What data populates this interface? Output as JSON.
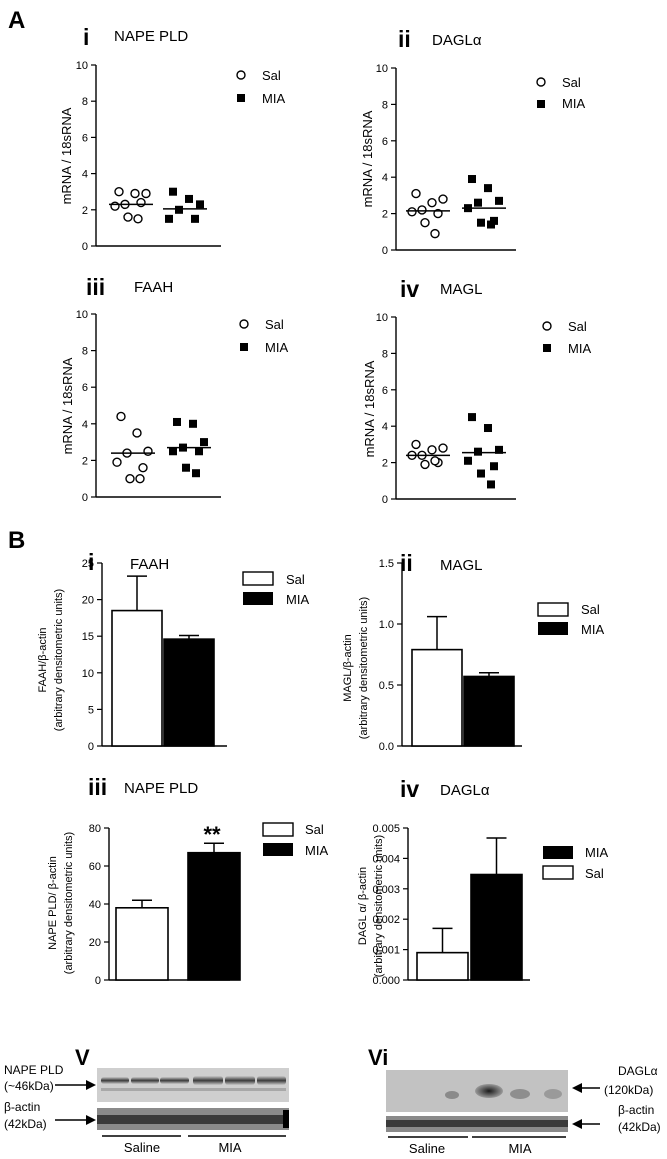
{
  "panels": {
    "A": "A",
    "B": "B"
  },
  "charts": [
    {
      "roman": "i",
      "title": "NAPE PLD",
      "ylabel": "mRNA / 18sRNA",
      "ticks": [
        "0",
        "2",
        "4",
        "6",
        "8",
        "10"
      ],
      "legend": [
        "Sal",
        "MIA"
      ]
    },
    {
      "roman": "ii",
      "title": "DAGLα",
      "ylabel": "mRNA  / 18sRNA",
      "ticks": [
        "0",
        "2",
        "4",
        "6",
        "8",
        "10"
      ],
      "legend": [
        "Sal",
        "MIA"
      ]
    },
    {
      "roman": "iii",
      "title": "FAAH",
      "ylabel": "mRNA / 18sRNA",
      "ticks": [
        "0",
        "2",
        "4",
        "6",
        "8",
        "10"
      ],
      "legend": [
        "Sal",
        "MIA"
      ]
    },
    {
      "roman": "iv",
      "title": "MAGL",
      "ylabel": "mRNA  / 18sRNA",
      "ticks": [
        "0",
        "2",
        "4",
        "6",
        "8",
        "10"
      ],
      "legend": [
        "Sal",
        "MIA"
      ]
    },
    {
      "roman": "i",
      "title": "FAAH",
      "ylabel1": "FAAH/β-actin",
      "ylabel2": "(arbitrary densitometric units)",
      "ticks": [
        "0",
        "5",
        "10",
        "15",
        "20",
        "25"
      ],
      "legend": [
        "Sal",
        "MIA"
      ]
    },
    {
      "roman": "ii",
      "title": "MAGL",
      "ylabel1": "MAGL/β-actin",
      "ylabel2": "(arbitrary densitometric units)",
      "ticks": [
        "0.0",
        "0.5",
        "1.0",
        "1.5"
      ],
      "legend": [
        "Sal",
        "MIA"
      ]
    },
    {
      "roman": "iii",
      "title": "NAPE PLD",
      "ylabel1": "NAPE PLD/ β-actin",
      "ylabel2": "(arbitrary densitometric units)",
      "ticks": [
        "0",
        "20",
        "40",
        "60",
        "80"
      ],
      "legend": [
        "Sal",
        "MIA"
      ],
      "annotation": "**"
    },
    {
      "roman": "iv",
      "title": "DAGLα",
      "ylabel1": "DAGL α/ β-actin",
      "ylabel2": "(arbitrary densitometric units)",
      "ticks": [
        "0.000",
        "0.001",
        "0.002",
        "0.003",
        "0.004",
        "0.005"
      ],
      "legend": [
        "MIA",
        "Sal"
      ]
    }
  ],
  "chart_data": [
    {
      "type": "scatter",
      "ylim": [
        0,
        10
      ],
      "series": [
        {
          "name": "Sal",
          "values": [
            3.0,
            2.9,
            2.9,
            2.3,
            2.2,
            2.4,
            1.6,
            1.5
          ]
        },
        {
          "name": "MIA",
          "values": [
            3.0,
            2.6,
            2.3,
            2.0,
            1.5,
            1.5
          ]
        }
      ],
      "means": [
        2.3,
        2.05
      ]
    },
    {
      "type": "scatter",
      "ylim": [
        0,
        10
      ],
      "series": [
        {
          "name": "Sal",
          "values": [
            3.1,
            2.6,
            2.8,
            2.2,
            2.1,
            2.0,
            1.5,
            0.9
          ]
        },
        {
          "name": "MIA",
          "values": [
            3.9,
            3.4,
            2.7,
            2.6,
            2.3,
            1.6,
            1.5,
            1.4
          ]
        }
      ],
      "means": [
        2.15,
        2.3
      ]
    },
    {
      "type": "scatter",
      "ylim": [
        0,
        10
      ],
      "series": [
        {
          "name": "Sal",
          "values": [
            4.4,
            3.5,
            2.5,
            2.4,
            1.9,
            1.6,
            1.0,
            1.0
          ]
        },
        {
          "name": "MIA",
          "values": [
            4.1,
            4.0,
            3.0,
            2.7,
            2.5,
            2.5,
            1.6,
            1.3
          ]
        }
      ],
      "means": [
        2.4,
        2.7
      ]
    },
    {
      "type": "scatter",
      "ylim": [
        0,
        10
      ],
      "series": [
        {
          "name": "Sal",
          "values": [
            3.0,
            2.7,
            2.8,
            2.4,
            2.4,
            2.0,
            1.9,
            2.1
          ]
        },
        {
          "name": "MIA",
          "values": [
            4.5,
            3.9,
            2.7,
            2.6,
            2.1,
            1.8,
            1.4,
            0.8
          ]
        }
      ],
      "means": [
        2.4,
        2.55
      ]
    },
    {
      "type": "bar",
      "categories": [
        "Sal",
        "MIA"
      ],
      "values": [
        18.5,
        14.6
      ],
      "errors": [
        4.7,
        0.5
      ],
      "ylim": [
        0,
        25
      ]
    },
    {
      "type": "bar",
      "categories": [
        "Sal",
        "MIA"
      ],
      "values": [
        0.79,
        0.57
      ],
      "errors": [
        0.27,
        0.03
      ],
      "ylim": [
        0,
        1.5
      ]
    },
    {
      "type": "bar",
      "categories": [
        "Sal",
        "MIA"
      ],
      "values": [
        38,
        67
      ],
      "errors": [
        4,
        5
      ],
      "ylim": [
        0,
        80
      ]
    },
    {
      "type": "bar",
      "categories": [
        "Sal",
        "MIA"
      ],
      "values": [
        0.0009,
        0.00347
      ],
      "errors": [
        0.0008,
        0.0012
      ],
      "ylim": [
        0,
        0.005
      ]
    }
  ],
  "blots": {
    "v": {
      "roman": "V",
      "label1a": "NAPE PLD",
      "label1b": "(~46kDa)",
      "label2a": "β-actin",
      "label2b": "(42kDa)",
      "groups": [
        "Saline",
        "MIA"
      ]
    },
    "vi": {
      "roman": "Vi",
      "label1a": "DAGLα",
      "label1b": "(120kDa)",
      "label2a": "β-actin",
      "label2b": "(42kDa)",
      "groups": [
        "Saline",
        "MIA"
      ]
    }
  },
  "colors": {
    "sal_fill": "#ffffff",
    "mia_fill": "#000000",
    "axis": "#000000"
  }
}
